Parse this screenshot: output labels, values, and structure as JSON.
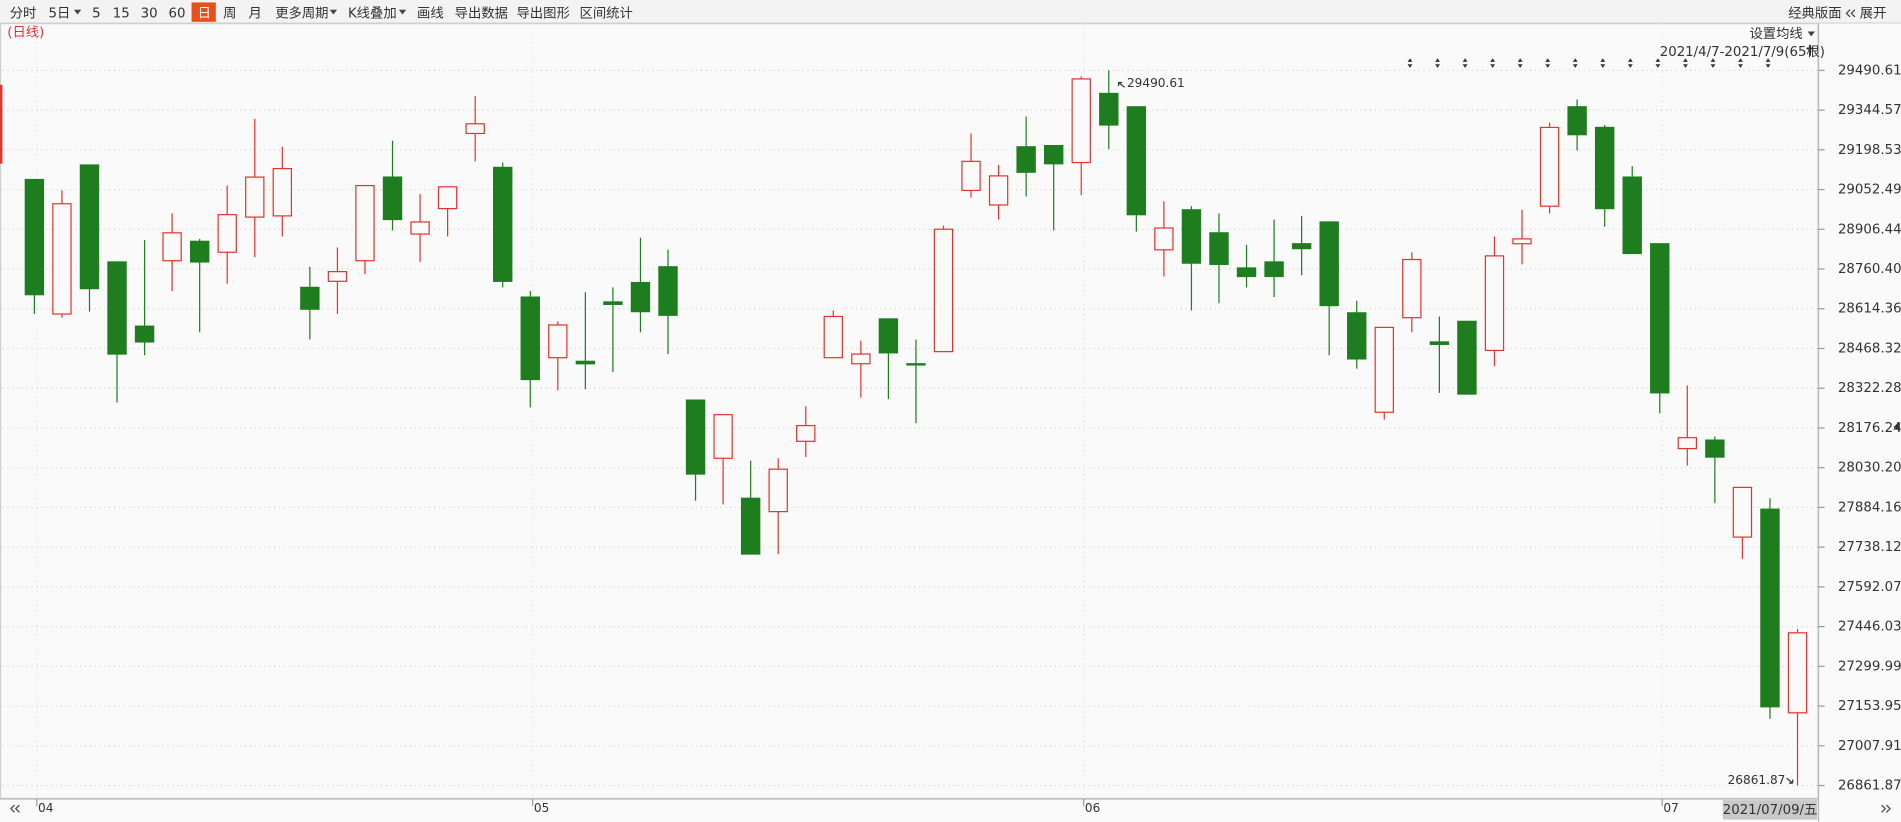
{
  "toolbar": {
    "items": [
      "分时",
      "5日",
      "5",
      "15",
      "30",
      "60",
      "日",
      "周",
      "月",
      "更多周期",
      "K线叠加",
      "画线",
      "导出数据",
      "导出图形",
      "区间统计"
    ],
    "active": 6,
    "right_items": [
      "经典版面",
      "展开"
    ]
  },
  "chart_data": {
    "type": "candlestick",
    "period_label": "(日线)",
    "ma_button": "设置均线",
    "range_label": "2021/4/7-2021/7/9(65根)",
    "crosshair_label": "2021/07/09/五",
    "up_color": "#e8322d",
    "down_color": "#1e7d1e",
    "grid": true,
    "categories": [
      "04",
      null,
      null,
      null,
      null,
      null,
      null,
      null,
      null,
      null,
      null,
      null,
      null,
      null,
      null,
      null,
      null,
      null,
      "05",
      null,
      null,
      null,
      null,
      null,
      null,
      null,
      null,
      null,
      null,
      null,
      null,
      null,
      null,
      null,
      null,
      null,
      null,
      null,
      "06",
      null,
      null,
      null,
      null,
      null,
      null,
      null,
      null,
      null,
      null,
      null,
      null,
      null,
      null,
      null,
      null,
      null,
      null,
      null,
      null,
      "07",
      null,
      null,
      null,
      null,
      null
    ],
    "open": [
      29089.4,
      28594.9,
      29142.8,
      28786.4,
      28550.3,
      28790.9,
      28862.2,
      28822.1,
      28951.3,
      28955.7,
      28692.9,
      28715.2,
      28790.9,
      29098.3,
      28888.9,
      28982.5,
      29258.7,
      29133.9,
      28657.2,
      28434.5,
      28421.1,
      28639.4,
      28710.7,
      28768.6,
      28278.6,
      28064.7,
      27917.7,
      27868.7,
      28127.1,
      28434.5,
      28412.2,
      28577.0,
      28412.2,
      28456.8,
      29049.3,
      28995.8,
      29209.7,
      29214.1,
      29151.7,
      29405.7,
      29356.7,
      28831.0,
      28978.0,
      28893.4,
      28764.2,
      28786.4,
      28853.3,
      28933.4,
      28599.3,
      28234.0,
      28581.5,
      28492.4,
      28568.1,
      28461.2,
      28853.3,
      28991.4,
      29356.7,
      29280.9,
      29098.3,
      28853.3,
      28100.4,
      28131.5,
      27775.1,
      27877.6,
      27129.2
    ],
    "high": [
      29089.4,
      29049.3,
      29142.8,
      28786.4,
      28866.6,
      28964.6,
      28871.1,
      29067.1,
      29312.1,
      29209.7,
      28768.6,
      28839.9,
      29067.1,
      29231.9,
      29035.9,
      29062.6,
      29396.8,
      29151.7,
      28679.5,
      28568.1,
      28675.1,
      28692.9,
      28875.5,
      28831.0,
      28278.6,
      28225.1,
      28055.8,
      28064.7,
      28256.3,
      28608.2,
      28496.9,
      28577.0,
      28501.3,
      28920.1,
      29258.7,
      29142.8,
      29321.0,
      29214.1,
      29468.0,
      29490.61,
      29356.7,
      29009.2,
      28991.4,
      28964.6,
      28848.8,
      28942.4,
      28955.7,
      28933.4,
      28643.9,
      28545.9,
      28822.1,
      28586.0,
      28568.1,
      28880.0,
      28978.0,
      29298.8,
      29383.4,
      29289.8,
      29138.4,
      28853.3,
      28332.0,
      28144.9,
      27957.8,
      27917.7,
      27436.6
    ],
    "low": [
      28594.9,
      28581.5,
      28603.8,
      28269.7,
      28443.4,
      28679.5,
      28528.0,
      28706.2,
      28804.3,
      28880.0,
      28501.3,
      28594.9,
      28741.9,
      28902.3,
      28786.4,
      28880.0,
      29156.2,
      28692.9,
      28251.8,
      28314.2,
      28318.7,
      28381.0,
      28528.0,
      28447.9,
      27908.8,
      27895.4,
      27712.8,
      27712.8,
      28069.2,
      28434.5,
      28287.5,
      28283.0,
      28193.9,
      28456.8,
      29022.5,
      28942.4,
      29027.0,
      28902.3,
      29031.5,
      29200.7,
      28897.8,
      28733.0,
      28608.2,
      28635.0,
      28692.9,
      28657.2,
      28737.4,
      28443.4,
      28394.4,
      28207.3,
      28528.0,
      28305.3,
      28300.8,
      28403.3,
      28777.5,
      28964.6,
      29196.3,
      28915.6,
      28817.6,
      28229.6,
      28038.0,
      27899.9,
      27695.0,
      27106.9,
      26861.87
    ],
    "close": [
      28666.1,
      29000.3,
      28688.4,
      28447.9,
      28492.4,
      28893.4,
      28786.4,
      28960.2,
      29098.3,
      29129.5,
      28612.7,
      28750.8,
      29067.1,
      28942.4,
      28933.4,
      29062.6,
      29294.3,
      28715.2,
      28354.3,
      28554.8,
      28412.2,
      28630.5,
      28603.8,
      28590.4,
      28006.8,
      28225.1,
      27712.8,
      28024.6,
      28185.0,
      28586.0,
      28447.9,
      28452.3,
      28407.8,
      28906.7,
      29156.2,
      29102.7,
      29116.1,
      29147.3,
      29459.1,
      29289.8,
      28960.2,
      28911.2,
      28782.0,
      28777.5,
      28733.0,
      28733.0,
      28835.4,
      28626.1,
      28430.0,
      28545.9,
      28795.3,
      28483.5,
      28300.8,
      28808.7,
      28871.1,
      29280.9,
      29254.2,
      28982.5,
      28817.6,
      28305.3,
      28140.5,
      28069.2,
      27957.8,
      27151.4,
      27423.2
    ],
    "ylim": [
      26817,
      29669
    ],
    "yticks": [
      29490.61,
      29344.57,
      29198.53,
      29052.49,
      28906.44,
      {
        "value": 28760.4,
        "label": "28760.40"
      },
      28614.36,
      28468.32,
      28322.28,
      28176.24,
      {
        "value": 28030.2,
        "label": "28030.20"
      },
      27884.16,
      27738.12,
      27592.07,
      27446.03,
      27299.99,
      27153.95,
      27007.91,
      26861.87
    ]
  }
}
